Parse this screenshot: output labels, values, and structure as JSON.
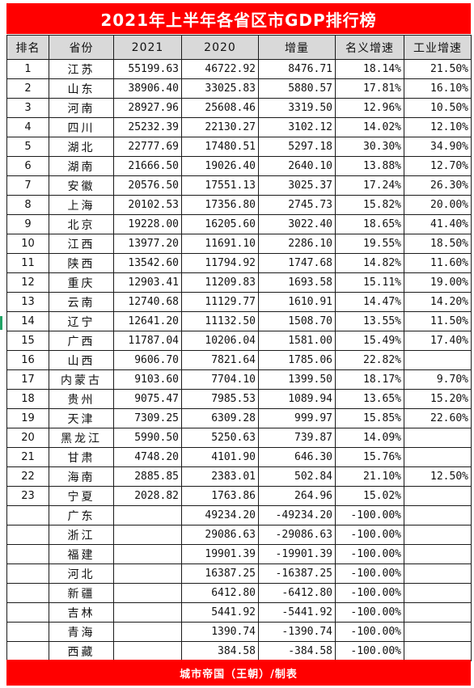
{
  "title": "2021年上半年各省区市GDP排行榜",
  "footer": "城市帝国（王朝）/制表",
  "colors": {
    "banner": "#ff0000",
    "header_bg": "#d9d9d9",
    "grid_line": "#1a1a1a",
    "edge_marker": "#21a366"
  },
  "columns": [
    "排名",
    "省份",
    "2021",
    "2020",
    "增量",
    "名义增速",
    "工业增速"
  ],
  "rows": [
    [
      "1",
      "江苏",
      "55199.63",
      "46722.92",
      "8476.71",
      "18.14%",
      "21.50%"
    ],
    [
      "2",
      "山东",
      "38906.40",
      "33025.83",
      "5880.57",
      "17.81%",
      "16.10%"
    ],
    [
      "3",
      "河南",
      "28927.96",
      "25608.46",
      "3319.50",
      "12.96%",
      "10.50%"
    ],
    [
      "4",
      "四川",
      "25232.39",
      "22130.27",
      "3102.12",
      "14.02%",
      "12.10%"
    ],
    [
      "5",
      "湖北",
      "22777.69",
      "17480.51",
      "5297.18",
      "30.30%",
      "34.90%"
    ],
    [
      "6",
      "湖南",
      "21666.50",
      "19026.40",
      "2640.10",
      "13.88%",
      "12.70%"
    ],
    [
      "7",
      "安徽",
      "20576.50",
      "17551.13",
      "3025.37",
      "17.24%",
      "26.30%"
    ],
    [
      "8",
      "上海",
      "20102.53",
      "17356.80",
      "2745.73",
      "15.82%",
      "20.00%"
    ],
    [
      "9",
      "北京",
      "19228.00",
      "16205.60",
      "3022.40",
      "18.65%",
      "41.40%"
    ],
    [
      "10",
      "江西",
      "13977.20",
      "11691.10",
      "2286.10",
      "19.55%",
      "18.50%"
    ],
    [
      "11",
      "陕西",
      "13542.60",
      "11794.92",
      "1747.68",
      "14.82%",
      "11.60%"
    ],
    [
      "12",
      "重庆",
      "12903.41",
      "11209.83",
      "1693.58",
      "15.11%",
      "19.00%"
    ],
    [
      "13",
      "云南",
      "12740.68",
      "11129.77",
      "1610.91",
      "14.47%",
      "14.20%"
    ],
    [
      "14",
      "辽宁",
      "12641.20",
      "11132.50",
      "1508.70",
      "13.55%",
      "11.50%"
    ],
    [
      "15",
      "广西",
      "11787.04",
      "10206.04",
      "1581.00",
      "15.49%",
      "17.40%"
    ],
    [
      "16",
      "山西",
      "9606.70",
      "7821.64",
      "1785.06",
      "22.82%",
      ""
    ],
    [
      "17",
      "内蒙古",
      "9103.60",
      "7704.10",
      "1399.50",
      "18.17%",
      "9.70%"
    ],
    [
      "18",
      "贵州",
      "9075.47",
      "7985.53",
      "1089.94",
      "13.65%",
      "15.20%"
    ],
    [
      "19",
      "天津",
      "7309.25",
      "6309.28",
      "999.97",
      "15.85%",
      "22.60%"
    ],
    [
      "20",
      "黑龙江",
      "5990.50",
      "5250.63",
      "739.87",
      "14.09%",
      ""
    ],
    [
      "21",
      "甘肃",
      "4748.20",
      "4101.90",
      "646.30",
      "15.76%",
      ""
    ],
    [
      "22",
      "海南",
      "2885.85",
      "2383.01",
      "502.84",
      "21.10%",
      "12.50%"
    ],
    [
      "23",
      "宁夏",
      "2028.82",
      "1763.86",
      "264.96",
      "15.02%",
      ""
    ],
    [
      "",
      "广东",
      "",
      "49234.20",
      "-49234.20",
      "-100.00%",
      ""
    ],
    [
      "",
      "浙江",
      "",
      "29086.63",
      "-29086.63",
      "-100.00%",
      ""
    ],
    [
      "",
      "福建",
      "",
      "19901.39",
      "-19901.39",
      "-100.00%",
      ""
    ],
    [
      "",
      "河北",
      "",
      "16387.25",
      "-16387.25",
      "-100.00%",
      ""
    ],
    [
      "",
      "新疆",
      "",
      "6412.80",
      "-6412.80",
      "-100.00%",
      ""
    ],
    [
      "",
      "吉林",
      "",
      "5441.92",
      "-5441.92",
      "-100.00%",
      ""
    ],
    [
      "",
      "青海",
      "",
      "1390.74",
      "-1390.74",
      "-100.00%",
      ""
    ],
    [
      "",
      "西藏",
      "",
      "384.58",
      "-384.58",
      "-100.00%",
      ""
    ]
  ]
}
